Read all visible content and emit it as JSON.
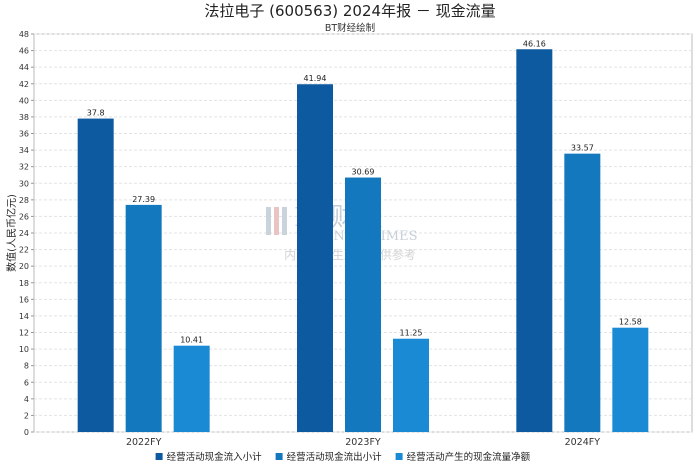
{
  "title": "法拉电子 (600563) 2024年报 － 现金流量",
  "subtitle": "BT财经绘制",
  "watermark": {
    "main": "BT财经",
    "sub": "BUSINESSTIMES",
    "note": "内容由AI生成，仅供参考"
  },
  "chart_data": {
    "type": "bar",
    "categories": [
      "2022FY",
      "2023FY",
      "2024FY"
    ],
    "series": [
      {
        "name": "经营活动现金流入小计",
        "values": [
          37.8,
          41.94,
          46.16
        ],
        "color": "#0d5aa0"
      },
      {
        "name": "经营活动现金流出小计",
        "values": [
          27.39,
          30.69,
          33.57
        ],
        "color": "#1478be"
      },
      {
        "name": "经营活动产生的现金流量净额",
        "values": [
          10.41,
          11.25,
          12.58
        ],
        "color": "#1a8ad4"
      }
    ],
    "ylabel": "数值(人民币亿元)",
    "xlabel": "",
    "ylim": [
      0,
      48
    ],
    "yticks": [
      0,
      2,
      4,
      6,
      8,
      10,
      12,
      14,
      16,
      18,
      20,
      22,
      24,
      26,
      28,
      30,
      32,
      34,
      36,
      38,
      40,
      42,
      44,
      46,
      48
    ],
    "grid": true,
    "legend_position": "bottom"
  }
}
